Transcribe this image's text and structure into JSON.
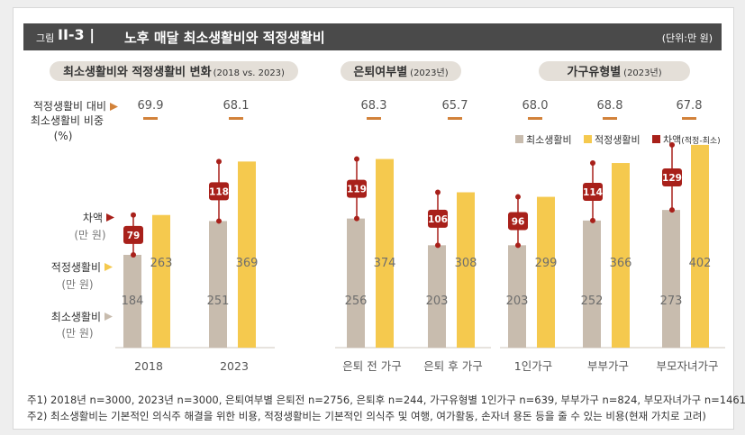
{
  "title": {
    "prefix": "그림",
    "number": "II-3 |",
    "text": "노후 매달 최소생활비와 적정생활비",
    "unit": "(단위:만 원)"
  },
  "sections": [
    {
      "title_main": "최소생활비와 적정생활비 변화",
      "title_sub": "(2018 vs. 2023)"
    },
    {
      "title_main": "은퇴여부별",
      "title_sub": "(2023년)"
    },
    {
      "title_main": "가구유형별",
      "title_sub": "(2023년)"
    }
  ],
  "left_labels": {
    "ratio": [
      "적정생활비 대비",
      "최소생활비 비중",
      "(%)"
    ],
    "gap": [
      "차액",
      "(만 원)"
    ],
    "adequate": [
      "적정생활비",
      "(만 원)"
    ],
    "minimum": [
      "최소생활비",
      "(만 원)"
    ]
  },
  "legend": [
    {
      "label": "최소생활비",
      "color": "#c8bcae"
    },
    {
      "label": "적정생활비",
      "color": "#f5c94e"
    },
    {
      "label": "차액",
      "sub": "(적정-최소)",
      "color": "#a8201a"
    }
  ],
  "chart_data": {
    "type": "bar",
    "categories": [
      "2018",
      "2023",
      "은퇴 전 가구",
      "은퇴 후 가구",
      "1인가구",
      "부부가구",
      "부모자녀가구"
    ],
    "series": [
      {
        "name": "최소생활비",
        "values": [
          184,
          251,
          256,
          203,
          203,
          252,
          273
        ]
      },
      {
        "name": "적정생활비",
        "values": [
          263,
          369,
          374,
          308,
          299,
          366,
          402
        ]
      },
      {
        "name": "차액(적정-최소)",
        "values": [
          79,
          118,
          119,
          106,
          96,
          114,
          129
        ]
      }
    ],
    "ratio_pct": [
      "69.9",
      "68.1",
      "68.3",
      "65.7",
      "68.0",
      "68.8",
      "67.8"
    ],
    "title": "노후 매달 최소생활비와 적정생활비",
    "xlabel": "",
    "ylabel": "만 원",
    "ylim": [
      0,
      420
    ]
  },
  "footnotes": [
    "주1) 2018년 n=3000, 2023년 n=3000, 은퇴여부별 은퇴전 n=2756, 은퇴후 n=244, 가구유형별 1인가구 n=639, 부부가구 n=824, 부모자녀가구 n=1461",
    "주2) 최소생활비는 기본적인 의식주 해결을 위한 비용,  적정생활비는 기본적인 의식주 및 여행, 여가활동, 손자녀 용돈 등을 줄 수 있는 비용(현재 가치로 고려)"
  ]
}
